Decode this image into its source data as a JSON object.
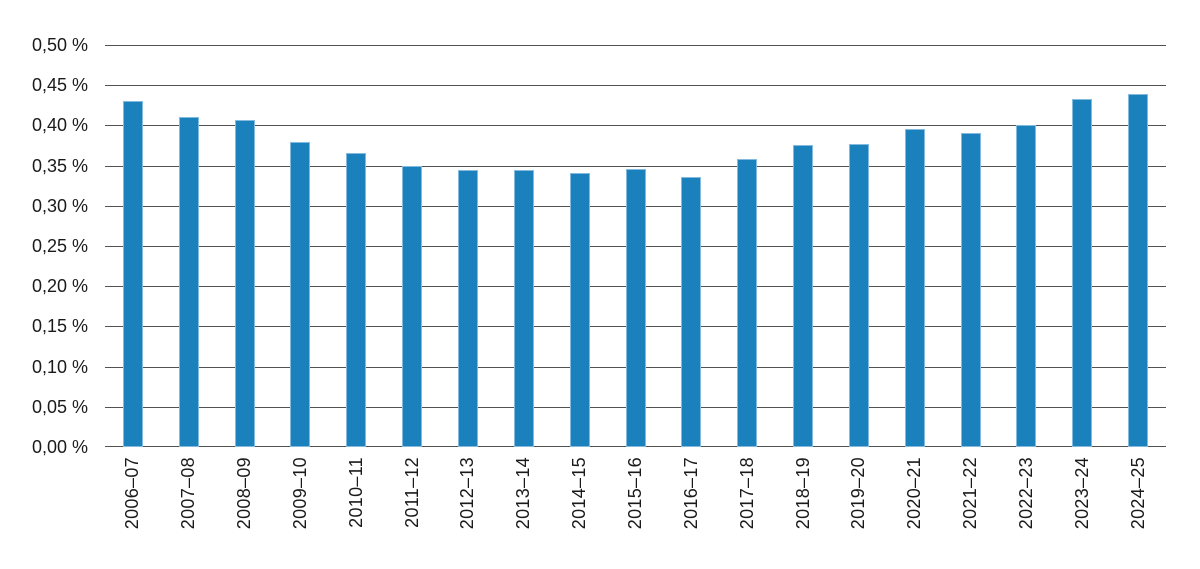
{
  "figure": {
    "background": "#ffffff"
  },
  "chart_data": {
    "type": "bar",
    "title": "",
    "xlabel": "",
    "ylabel": "",
    "legend": "none",
    "grid": true,
    "unit": "percent",
    "ylim": [
      0,
      0.5
    ],
    "y_ticks": [
      0.0,
      0.05,
      0.1,
      0.15,
      0.2,
      0.25,
      0.3,
      0.35,
      0.4,
      0.45,
      0.5
    ],
    "y_tick_labels": [
      "0,00 %",
      "0,05 %",
      "0,10 %",
      "0,15 %",
      "0,20 %",
      "0,25 %",
      "0,30 %",
      "0,35 %",
      "0,40 %",
      "0,45 %",
      "0,50 %"
    ],
    "categories": [
      "2006–07",
      "2007–08",
      "2008–09",
      "2009–10",
      "2010–11",
      "2011–12",
      "2012–13",
      "2013–14",
      "2014–15",
      "2015–16",
      "2016–17",
      "2017–18",
      "2018–19",
      "2019–20",
      "2020–21",
      "2021–22",
      "2022–23",
      "2023–24",
      "2024–25"
    ],
    "values": [
      0.43,
      0.41,
      0.407,
      0.379,
      0.366,
      0.349,
      0.345,
      0.344,
      0.341,
      0.346,
      0.336,
      0.358,
      0.375,
      0.377,
      0.395,
      0.391,
      0.4,
      0.433,
      0.439
    ],
    "colors": {
      "bar": "#1b81bd",
      "bar_edge": "#a5cfe8",
      "grid": "#525252",
      "text": "#1a1a1a",
      "background": "#ffffff"
    }
  }
}
